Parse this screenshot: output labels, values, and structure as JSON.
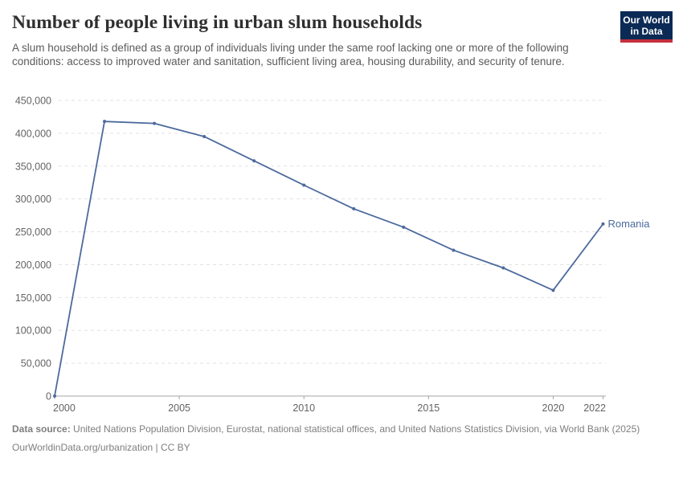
{
  "header": {
    "title": "Number of people living in urban slum households",
    "subtitle": "A slum household is defined as a group of individuals living under the same roof lacking one or more of the following conditions: access to improved water and sanitation, sufficient living area, housing durability, and security of tenure.",
    "logo": {
      "line1": "Our World",
      "line2": "in Data",
      "bg_color": "#0b2a55",
      "accent_color": "#c5303e"
    }
  },
  "chart_data": {
    "type": "line",
    "title": "Number of people living in urban slum households",
    "entity": "Romania",
    "x": [
      2000,
      2002,
      2004,
      2006,
      2008,
      2010,
      2012,
      2014,
      2016,
      2018,
      2020,
      2022
    ],
    "values": [
      0,
      418000,
      415000,
      395000,
      358000,
      321000,
      285000,
      257000,
      222000,
      195000,
      161000,
      262000
    ],
    "xlim": [
      2000,
      2022
    ],
    "ylim": [
      0,
      450000
    ],
    "ytick_step": 50000,
    "xticks": [
      2000,
      2005,
      2010,
      2015,
      2020,
      2022
    ],
    "grid": true,
    "legend_position": "end-of-line",
    "line_color": "#4C6A9C",
    "xlabel": "",
    "ylabel": ""
  },
  "footer": {
    "source_label": "Data source:",
    "source_text": " United Nations Population Division, Eurostat, national statistical offices, and United Nations Statistics Division, via World Bank (2025)",
    "link": "OurWorldinData.org/urbanization | CC BY"
  }
}
